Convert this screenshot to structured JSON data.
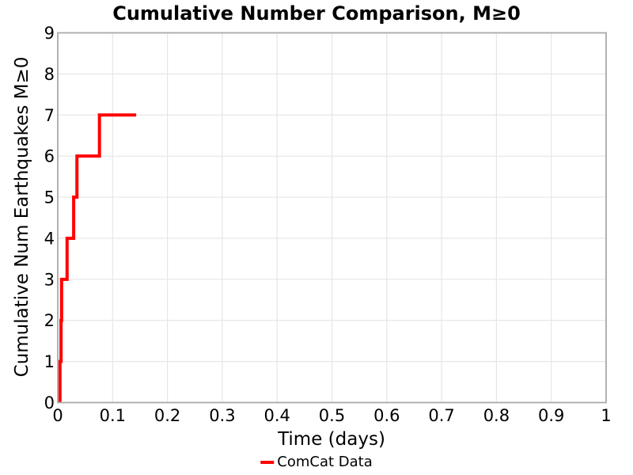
{
  "figure": {
    "title": "Cumulative Number Comparison, M≥0"
  },
  "style": {
    "background_color": "#ffffff",
    "grid_color": "#e6e6e6",
    "spine_color": "#ababab",
    "text_color": "#000000",
    "accent_red": "#ff0000"
  },
  "chart_data": {
    "type": "line",
    "subtype": "cumulative-step",
    "title": "Cumulative Number Comparison, M≥0",
    "xlabel": "Time (days)",
    "ylabel": "Cumulative Num Earthquakes M≥0",
    "xlim": [
      0,
      1
    ],
    "ylim": [
      0,
      9
    ],
    "grid": true,
    "legend_position": "bottom-center",
    "x_tick_values": [
      0,
      0.1,
      0.2,
      0.3,
      0.4,
      0.5,
      0.6,
      0.7,
      0.8,
      0.9,
      1
    ],
    "x_tick_labels": [
      "0",
      "0.1",
      "0.2",
      "0.3",
      "0.4",
      "0.5",
      "0.6",
      "0.7",
      "0.8",
      "0.9",
      "1"
    ],
    "y_tick_values": [
      0,
      1,
      2,
      3,
      4,
      5,
      6,
      7,
      8,
      9
    ],
    "y_tick_labels": [
      "0",
      "1",
      "2",
      "3",
      "4",
      "5",
      "6",
      "7",
      "8",
      "9"
    ],
    "series": [
      {
        "name": "ComCat Data",
        "color": "#ff0000",
        "line_width": 4,
        "event_times_days": [
          0.004,
          0.006,
          0.007,
          0.017,
          0.029,
          0.035,
          0.076
        ],
        "cumulative_counts": [
          1,
          2,
          3,
          4,
          5,
          6,
          7
        ],
        "end_time_days": 0.143,
        "final_count": 7
      }
    ]
  }
}
